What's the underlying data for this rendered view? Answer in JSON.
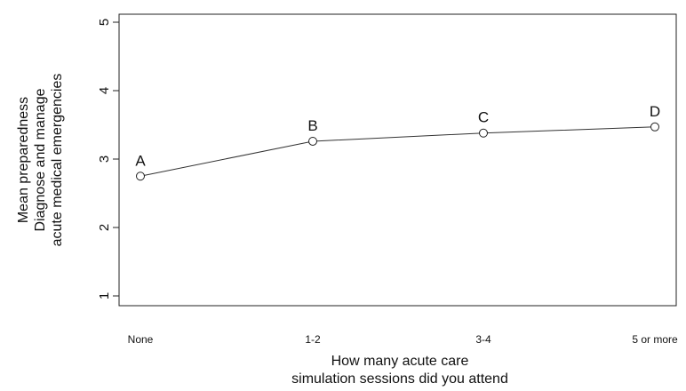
{
  "chart_data": {
    "type": "line",
    "categories": [
      "None",
      "1-2",
      "3-4",
      "5 or more"
    ],
    "values": [
      2.75,
      3.26,
      3.38,
      3.47
    ],
    "point_labels": [
      "A",
      "B",
      "C",
      "D"
    ],
    "ylabel": [
      "Mean preparedness",
      "Diagnose and manage",
      "acute medical emergencies"
    ],
    "xlabel": [
      "How many acute care",
      "simulation sessions did you attend"
    ],
    "yticks": [
      "1",
      "2",
      "3",
      "4",
      "5"
    ],
    "ylim": [
      1,
      5
    ],
    "grid": false,
    "legend": "none"
  }
}
